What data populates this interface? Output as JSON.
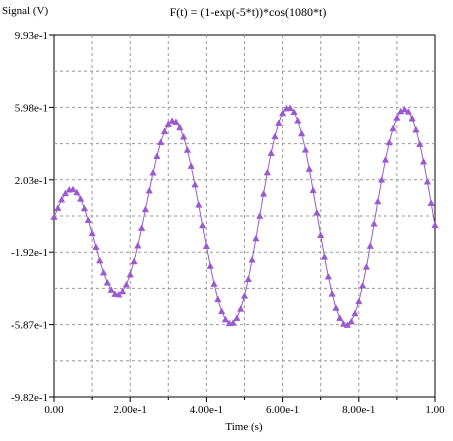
{
  "chart_data": {
    "type": "scatter",
    "title": "F(t) = (1-exp(-5*t))*cos(1080*t)",
    "xlabel": "Time (s)",
    "ylabel": "Signal (V)",
    "xlim": [
      0,
      1
    ],
    "ylim": [
      -0.982,
      0.993
    ],
    "x_ticks": [
      {
        "value": 0.0,
        "label": "0.00"
      },
      {
        "value": 0.2,
        "label": "2.00e-1"
      },
      {
        "value": 0.4,
        "label": "4.00e-1"
      },
      {
        "value": 0.6,
        "label": "6.00e-1"
      },
      {
        "value": 0.8,
        "label": "8.00e-1"
      },
      {
        "value": 1.0,
        "label": "1.00"
      }
    ],
    "y_ticks": [
      {
        "value": 0.993,
        "label": "9.93e-1"
      },
      {
        "value": 0.598,
        "label": "5.98e-1"
      },
      {
        "value": 0.203,
        "label": "2.03e-1"
      },
      {
        "value": -0.192,
        "label": "-1.92e-1"
      },
      {
        "value": -0.587,
        "label": "-5.87e-1"
      },
      {
        "value": -0.982,
        "label": "-9.82e-1"
      }
    ],
    "grid": true,
    "series_color": "#9b59d0",
    "marker": "triangle",
    "series": [
      {
        "x": [
          0.0,
          0.01,
          0.02,
          0.03,
          0.04,
          0.05,
          0.06,
          0.07,
          0.08,
          0.09,
          0.1,
          0.11,
          0.12,
          0.13,
          0.14,
          0.15,
          0.16,
          0.17,
          0.18,
          0.19,
          0.2,
          0.21,
          0.22,
          0.23,
          0.24,
          0.25,
          0.26,
          0.27,
          0.28,
          0.29,
          0.3,
          0.31,
          0.32,
          0.33,
          0.34,
          0.35,
          0.36,
          0.37,
          0.38,
          0.39,
          0.4,
          0.41,
          0.42,
          0.43,
          0.44,
          0.45,
          0.46,
          0.47,
          0.48,
          0.49,
          0.5,
          0.51,
          0.52,
          0.53,
          0.54,
          0.55,
          0.56,
          0.57,
          0.58,
          0.59,
          0.6,
          0.61,
          0.62,
          0.63,
          0.64,
          0.65,
          0.66,
          0.67,
          0.68,
          0.69,
          0.7,
          0.71,
          0.72,
          0.73,
          0.74,
          0.75,
          0.76,
          0.77,
          0.78,
          0.79,
          0.8,
          0.81,
          0.82,
          0.83,
          0.84,
          0.85,
          0.86,
          0.87,
          0.88,
          0.89,
          0.9,
          0.91,
          0.92,
          0.93,
          0.94,
          0.95,
          0.96,
          0.97,
          0.98,
          0.99,
          1.0
        ],
        "y": [
          0.0,
          0.049,
          0.095,
          0.129,
          0.149,
          0.151,
          0.134,
          0.099,
          0.047,
          -0.017,
          -0.089,
          -0.164,
          -0.237,
          -0.303,
          -0.358,
          -0.398,
          -0.42,
          -0.423,
          -0.406,
          -0.369,
          -0.314,
          -0.242,
          -0.156,
          -0.06,
          0.042,
          0.144,
          0.242,
          0.332,
          0.408,
          0.468,
          0.507,
          0.524,
          0.518,
          0.489,
          0.438,
          0.366,
          0.278,
          0.177,
          0.067,
          -0.046,
          -0.159,
          -0.267,
          -0.365,
          -0.449,
          -0.514,
          -0.559,
          -0.58,
          -0.578,
          -0.551,
          -0.501,
          -0.43,
          -0.339,
          -0.233,
          -0.117,
          0.006,
          0.127,
          0.243,
          0.349,
          0.44,
          0.513,
          0.565,
          0.592,
          0.594,
          0.572,
          0.525,
          0.456,
          0.367,
          0.262,
          0.146,
          0.024,
          -0.099,
          -0.217,
          -0.325,
          -0.419,
          -0.496,
          -0.551,
          -0.583,
          -0.589,
          -0.57,
          -0.526,
          -0.46,
          -0.374,
          -0.272,
          -0.158,
          -0.037,
          0.085,
          0.203,
          0.312,
          0.407,
          0.484,
          0.541,
          0.576,
          0.587,
          0.574,
          0.537,
          0.477,
          0.398,
          0.302,
          0.193,
          0.076,
          -0.045
        ]
      }
    ]
  }
}
